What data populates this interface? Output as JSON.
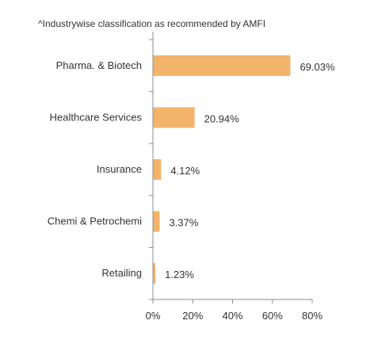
{
  "note": "^Industrywise classification as recommended by AMFI",
  "chart_data": {
    "type": "bar",
    "orientation": "horizontal",
    "title": "",
    "xlabel": "",
    "ylabel": "",
    "categories": [
      "Pharma. & Biotech",
      "Healthcare Services",
      "Insurance",
      "Chemi & Petrochemi",
      "Retailing"
    ],
    "values": [
      69.03,
      20.94,
      4.12,
      3.37,
      1.23
    ],
    "value_labels": [
      "69.03%",
      "20.94%",
      "4.12%",
      "3.37%",
      "1.23%"
    ],
    "xlim": [
      0,
      80
    ],
    "x_ticks": [
      0,
      20,
      40,
      60,
      80
    ],
    "x_tick_labels": [
      "0%",
      "20%",
      "40%",
      "60%",
      "80%"
    ],
    "grid": false,
    "legend": "none",
    "bar_color": "#F2B36B"
  }
}
